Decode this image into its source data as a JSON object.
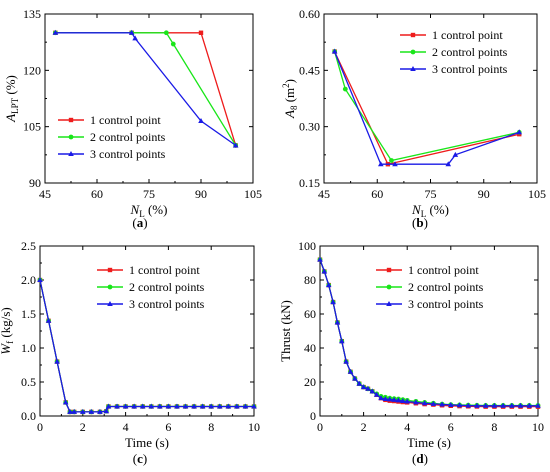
{
  "colors": {
    "s1": "#ee1c1c",
    "s2": "#19e619",
    "s3": "#1a1ae6"
  },
  "chart_data": [
    {
      "id": "a",
      "type": "line",
      "panel_label": "a",
      "xlabel_main": "N",
      "xlabel_sub": "L",
      "xlabel_unit": " (%)",
      "ylabel_main": "A",
      "ylabel_sub": "LPT",
      "ylabel_unit": " (%)",
      "xlim": [
        45,
        105
      ],
      "ylim": [
        90,
        135
      ],
      "xticks": [
        45,
        60,
        75,
        90,
        105
      ],
      "yticks": [
        90,
        105,
        120,
        135
      ],
      "legend_position": "bottom-left",
      "series": [
        {
          "name": "1 control point",
          "color": "s1",
          "marker": "square",
          "x": [
            48,
            70,
            90,
            100
          ],
          "y": [
            130,
            130,
            130,
            100
          ]
        },
        {
          "name": "2 control points",
          "color": "s2",
          "marker": "circle",
          "x": [
            48,
            70,
            80,
            82,
            100
          ],
          "y": [
            130,
            130,
            130,
            127,
            100
          ]
        },
        {
          "name": "3 control points",
          "color": "s3",
          "marker": "triangle",
          "x": [
            48,
            70,
            71,
            90,
            100
          ],
          "y": [
            130,
            130,
            128.5,
            106.5,
            100
          ]
        }
      ]
    },
    {
      "id": "b",
      "type": "line",
      "panel_label": "b",
      "xlabel_main": "N",
      "xlabel_sub": "L",
      "xlabel_unit": " (%)",
      "ylabel_main": "A",
      "ylabel_sub": "8",
      "ylabel_unit": " (m",
      "ylabel_sup": "2",
      "ylabel_close": ")",
      "xlim": [
        45,
        105
      ],
      "ylim": [
        0.15,
        0.6
      ],
      "xticks": [
        45,
        60,
        75,
        90,
        105
      ],
      "yticks": [
        "0.15",
        "0.30",
        "0.45",
        "0.60"
      ],
      "legend_position": "top-right",
      "series": [
        {
          "name": "1 control point",
          "color": "s1",
          "marker": "square",
          "x": [
            48,
            63,
            100
          ],
          "y": [
            0.5,
            0.2,
            0.28
          ]
        },
        {
          "name": "2 control points",
          "color": "s2",
          "marker": "circle",
          "x": [
            48,
            51,
            64,
            100
          ],
          "y": [
            0.5,
            0.4,
            0.21,
            0.285
          ]
        },
        {
          "name": "3 control points",
          "color": "s3",
          "marker": "triangle",
          "x": [
            48,
            61,
            65,
            80,
            82,
            100
          ],
          "y": [
            0.5,
            0.2,
            0.2,
            0.2,
            0.225,
            0.285
          ]
        }
      ]
    },
    {
      "id": "c",
      "type": "line",
      "panel_label": "c",
      "xlabel_main": "Time (s)",
      "ylabel_main": "W",
      "ylabel_sub": "f",
      "ylabel_unit": " (kg/s)",
      "xlim": [
        0,
        10
      ],
      "ylim": [
        0.0,
        2.5
      ],
      "xticks": [
        0,
        2,
        4,
        6,
        8,
        10
      ],
      "yticks": [
        "0.0",
        "0.5",
        "1.0",
        "1.5",
        "2.0",
        "2.5"
      ],
      "legend_position": "top-right",
      "series": [
        {
          "name": "1 control point",
          "color": "s1",
          "marker": "square",
          "x": [
            0,
            0.4,
            0.8,
            1.2,
            1.4,
            1.6,
            2.0,
            2.4,
            2.8,
            3.1,
            3.2,
            3.6,
            4.0,
            4.4,
            4.8,
            5.2,
            5.6,
            6.0,
            6.4,
            6.8,
            7.2,
            7.6,
            8.0,
            8.4,
            8.8,
            9.2,
            9.6,
            10.0
          ],
          "y": [
            2.0,
            1.4,
            0.8,
            0.2,
            0.06,
            0.06,
            0.06,
            0.06,
            0.06,
            0.07,
            0.14,
            0.14,
            0.14,
            0.14,
            0.14,
            0.14,
            0.14,
            0.14,
            0.14,
            0.14,
            0.14,
            0.14,
            0.14,
            0.14,
            0.14,
            0.14,
            0.14,
            0.14
          ]
        },
        {
          "name": "2 control points",
          "color": "s2",
          "marker": "circle",
          "x": [
            0,
            0.4,
            0.8,
            1.2,
            1.4,
            1.6,
            2.0,
            2.4,
            2.8,
            3.1,
            3.2,
            3.6,
            4.0,
            4.4,
            4.8,
            5.2,
            5.6,
            6.0,
            6.4,
            6.8,
            7.2,
            7.6,
            8.0,
            8.4,
            8.8,
            9.2,
            9.6,
            10.0
          ],
          "y": [
            2.0,
            1.4,
            0.8,
            0.2,
            0.06,
            0.06,
            0.06,
            0.06,
            0.06,
            0.07,
            0.14,
            0.14,
            0.14,
            0.14,
            0.14,
            0.14,
            0.14,
            0.14,
            0.14,
            0.14,
            0.14,
            0.14,
            0.14,
            0.14,
            0.14,
            0.14,
            0.14,
            0.14
          ]
        },
        {
          "name": "3 control points",
          "color": "s3",
          "marker": "triangle",
          "x": [
            0,
            0.4,
            0.8,
            1.2,
            1.4,
            1.6,
            2.0,
            2.4,
            2.8,
            3.1,
            3.2,
            3.6,
            4.0,
            4.4,
            4.8,
            5.2,
            5.6,
            6.0,
            6.4,
            6.8,
            7.2,
            7.6,
            8.0,
            8.4,
            8.8,
            9.2,
            9.6,
            10.0
          ],
          "y": [
            2.0,
            1.4,
            0.8,
            0.2,
            0.06,
            0.06,
            0.06,
            0.06,
            0.06,
            0.07,
            0.14,
            0.14,
            0.14,
            0.14,
            0.14,
            0.14,
            0.14,
            0.14,
            0.14,
            0.14,
            0.14,
            0.14,
            0.14,
            0.14,
            0.14,
            0.14,
            0.14,
            0.14
          ]
        }
      ]
    },
    {
      "id": "d",
      "type": "line",
      "panel_label": "d",
      "xlabel_main": "Time (s)",
      "ylabel_main": "Thrust (kN)",
      "xlim": [
        0,
        10
      ],
      "ylim": [
        0,
        100
      ],
      "xticks": [
        0,
        2,
        4,
        6,
        8,
        10
      ],
      "yticks": [
        0,
        20,
        40,
        60,
        80,
        100
      ],
      "legend_position": "top-right",
      "series": [
        {
          "name": "1 control point",
          "color": "s1",
          "marker": "square",
          "x": [
            0,
            0.2,
            0.4,
            0.6,
            0.8,
            1.0,
            1.2,
            1.4,
            1.6,
            1.8,
            2.0,
            2.2,
            2.4,
            2.6,
            2.8,
            3.0,
            3.2,
            3.4,
            3.6,
            3.8,
            4.0,
            4.4,
            4.8,
            5.2,
            5.6,
            6.0,
            6.4,
            6.8,
            7.2,
            7.6,
            8.0,
            8.4,
            8.8,
            9.2,
            9.6,
            10.0
          ],
          "y": [
            92,
            85,
            77,
            67,
            55,
            44,
            32,
            26,
            22,
            19,
            17,
            16,
            14.5,
            12.5,
            10.5,
            9.5,
            9,
            8.8,
            8.5,
            8.2,
            8,
            7.5,
            7,
            6.7,
            6.3,
            6,
            5.8,
            5.7,
            5.6,
            5.5,
            5.5,
            5.5,
            5.5,
            5.5,
            5.5,
            5.5
          ]
        },
        {
          "name": "2 control points",
          "color": "s2",
          "marker": "circle",
          "x": [
            0,
            0.2,
            0.4,
            0.6,
            0.8,
            1.0,
            1.2,
            1.4,
            1.6,
            1.8,
            2.0,
            2.2,
            2.4,
            2.6,
            2.8,
            3.0,
            3.2,
            3.4,
            3.6,
            3.8,
            4.0,
            4.4,
            4.8,
            5.2,
            5.6,
            6.0,
            6.4,
            6.8,
            7.2,
            7.6,
            8.0,
            8.4,
            8.8,
            9.2,
            9.6,
            10.0
          ],
          "y": [
            92,
            85,
            77,
            67,
            55,
            44,
            32,
            26,
            22,
            19,
            17,
            16,
            14.5,
            13,
            11.5,
            11,
            10.5,
            10.2,
            10,
            9.6,
            9.2,
            8.6,
            8,
            7.5,
            7,
            6.7,
            6.5,
            6.4,
            6.3,
            6.2,
            6.2,
            6.2,
            6.2,
            6.2,
            6.2,
            6.2
          ]
        },
        {
          "name": "3 control points",
          "color": "s3",
          "marker": "triangle",
          "x": [
            0,
            0.2,
            0.4,
            0.6,
            0.8,
            1.0,
            1.2,
            1.4,
            1.6,
            1.8,
            2.0,
            2.2,
            2.4,
            2.6,
            2.8,
            3.0,
            3.2,
            3.4,
            3.6,
            3.8,
            4.0,
            4.4,
            4.8,
            5.2,
            5.6,
            6.0,
            6.4,
            6.8,
            7.2,
            7.6,
            8.0,
            8.4,
            8.8,
            9.2,
            9.6,
            10.0
          ],
          "y": [
            92,
            85,
            77,
            67,
            55,
            44,
            32,
            26,
            22,
            19,
            17,
            16,
            14.5,
            12.5,
            10.5,
            10,
            9.8,
            9.5,
            9.2,
            8.8,
            8.5,
            8,
            7.5,
            7.1,
            6.8,
            6.5,
            6.3,
            6.1,
            6,
            6,
            6,
            6,
            6,
            6,
            6,
            6
          ]
        }
      ]
    }
  ]
}
